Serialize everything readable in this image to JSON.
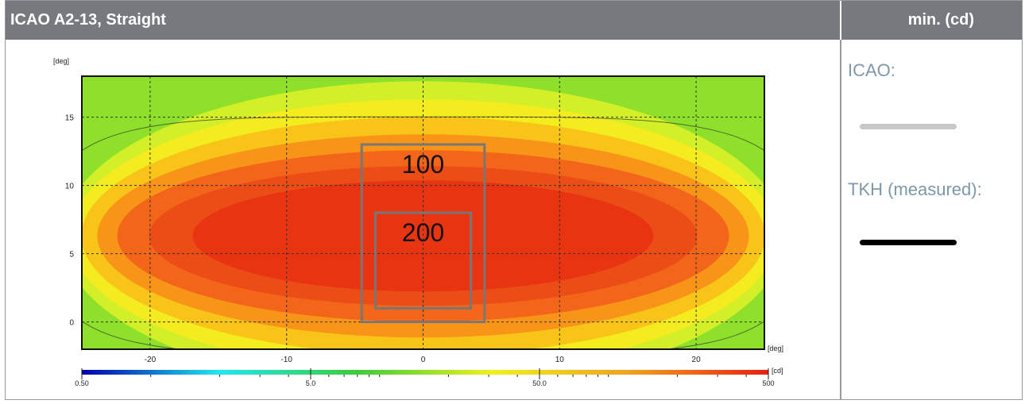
{
  "header": {
    "title": "ICAO A2-13, Straight",
    "unit_column": "min. (cd)"
  },
  "legend": {
    "icao_label": "ICAO:",
    "icao_color": "#c8c8c8",
    "measured_label": "TKH (measured):",
    "measured_color": "#000000"
  },
  "chart_data": {
    "type": "heatmap",
    "title": "",
    "xlabel": "[deg]",
    "ylabel": "[deg]",
    "xlim": [
      -25,
      25
    ],
    "ylim": [
      -2,
      18
    ],
    "x_ticks": [
      -20,
      -10,
      0,
      10,
      20
    ],
    "y_ticks": [
      0,
      5,
      10,
      15
    ],
    "grid": true,
    "colorbar": {
      "unit": "[cd]",
      "scale": "log",
      "range": [
        0.5,
        500
      ],
      "tick_labels": [
        "0.50",
        "5.0",
        "50.0",
        "500"
      ],
      "tick_values": [
        0.5,
        5,
        50,
        500
      ],
      "colors": [
        "#0000aa",
        "#22e6f0",
        "#3ccc3c",
        "#f0f020",
        "#f0a020",
        "#e82010"
      ]
    },
    "regions": [
      {
        "label": "100",
        "x": [
          -4.5,
          4.5
        ],
        "y": [
          0,
          13
        ]
      },
      {
        "label": "200",
        "x": [
          -3.5,
          3.5
        ],
        "y": [
          1,
          8
        ]
      }
    ]
  }
}
